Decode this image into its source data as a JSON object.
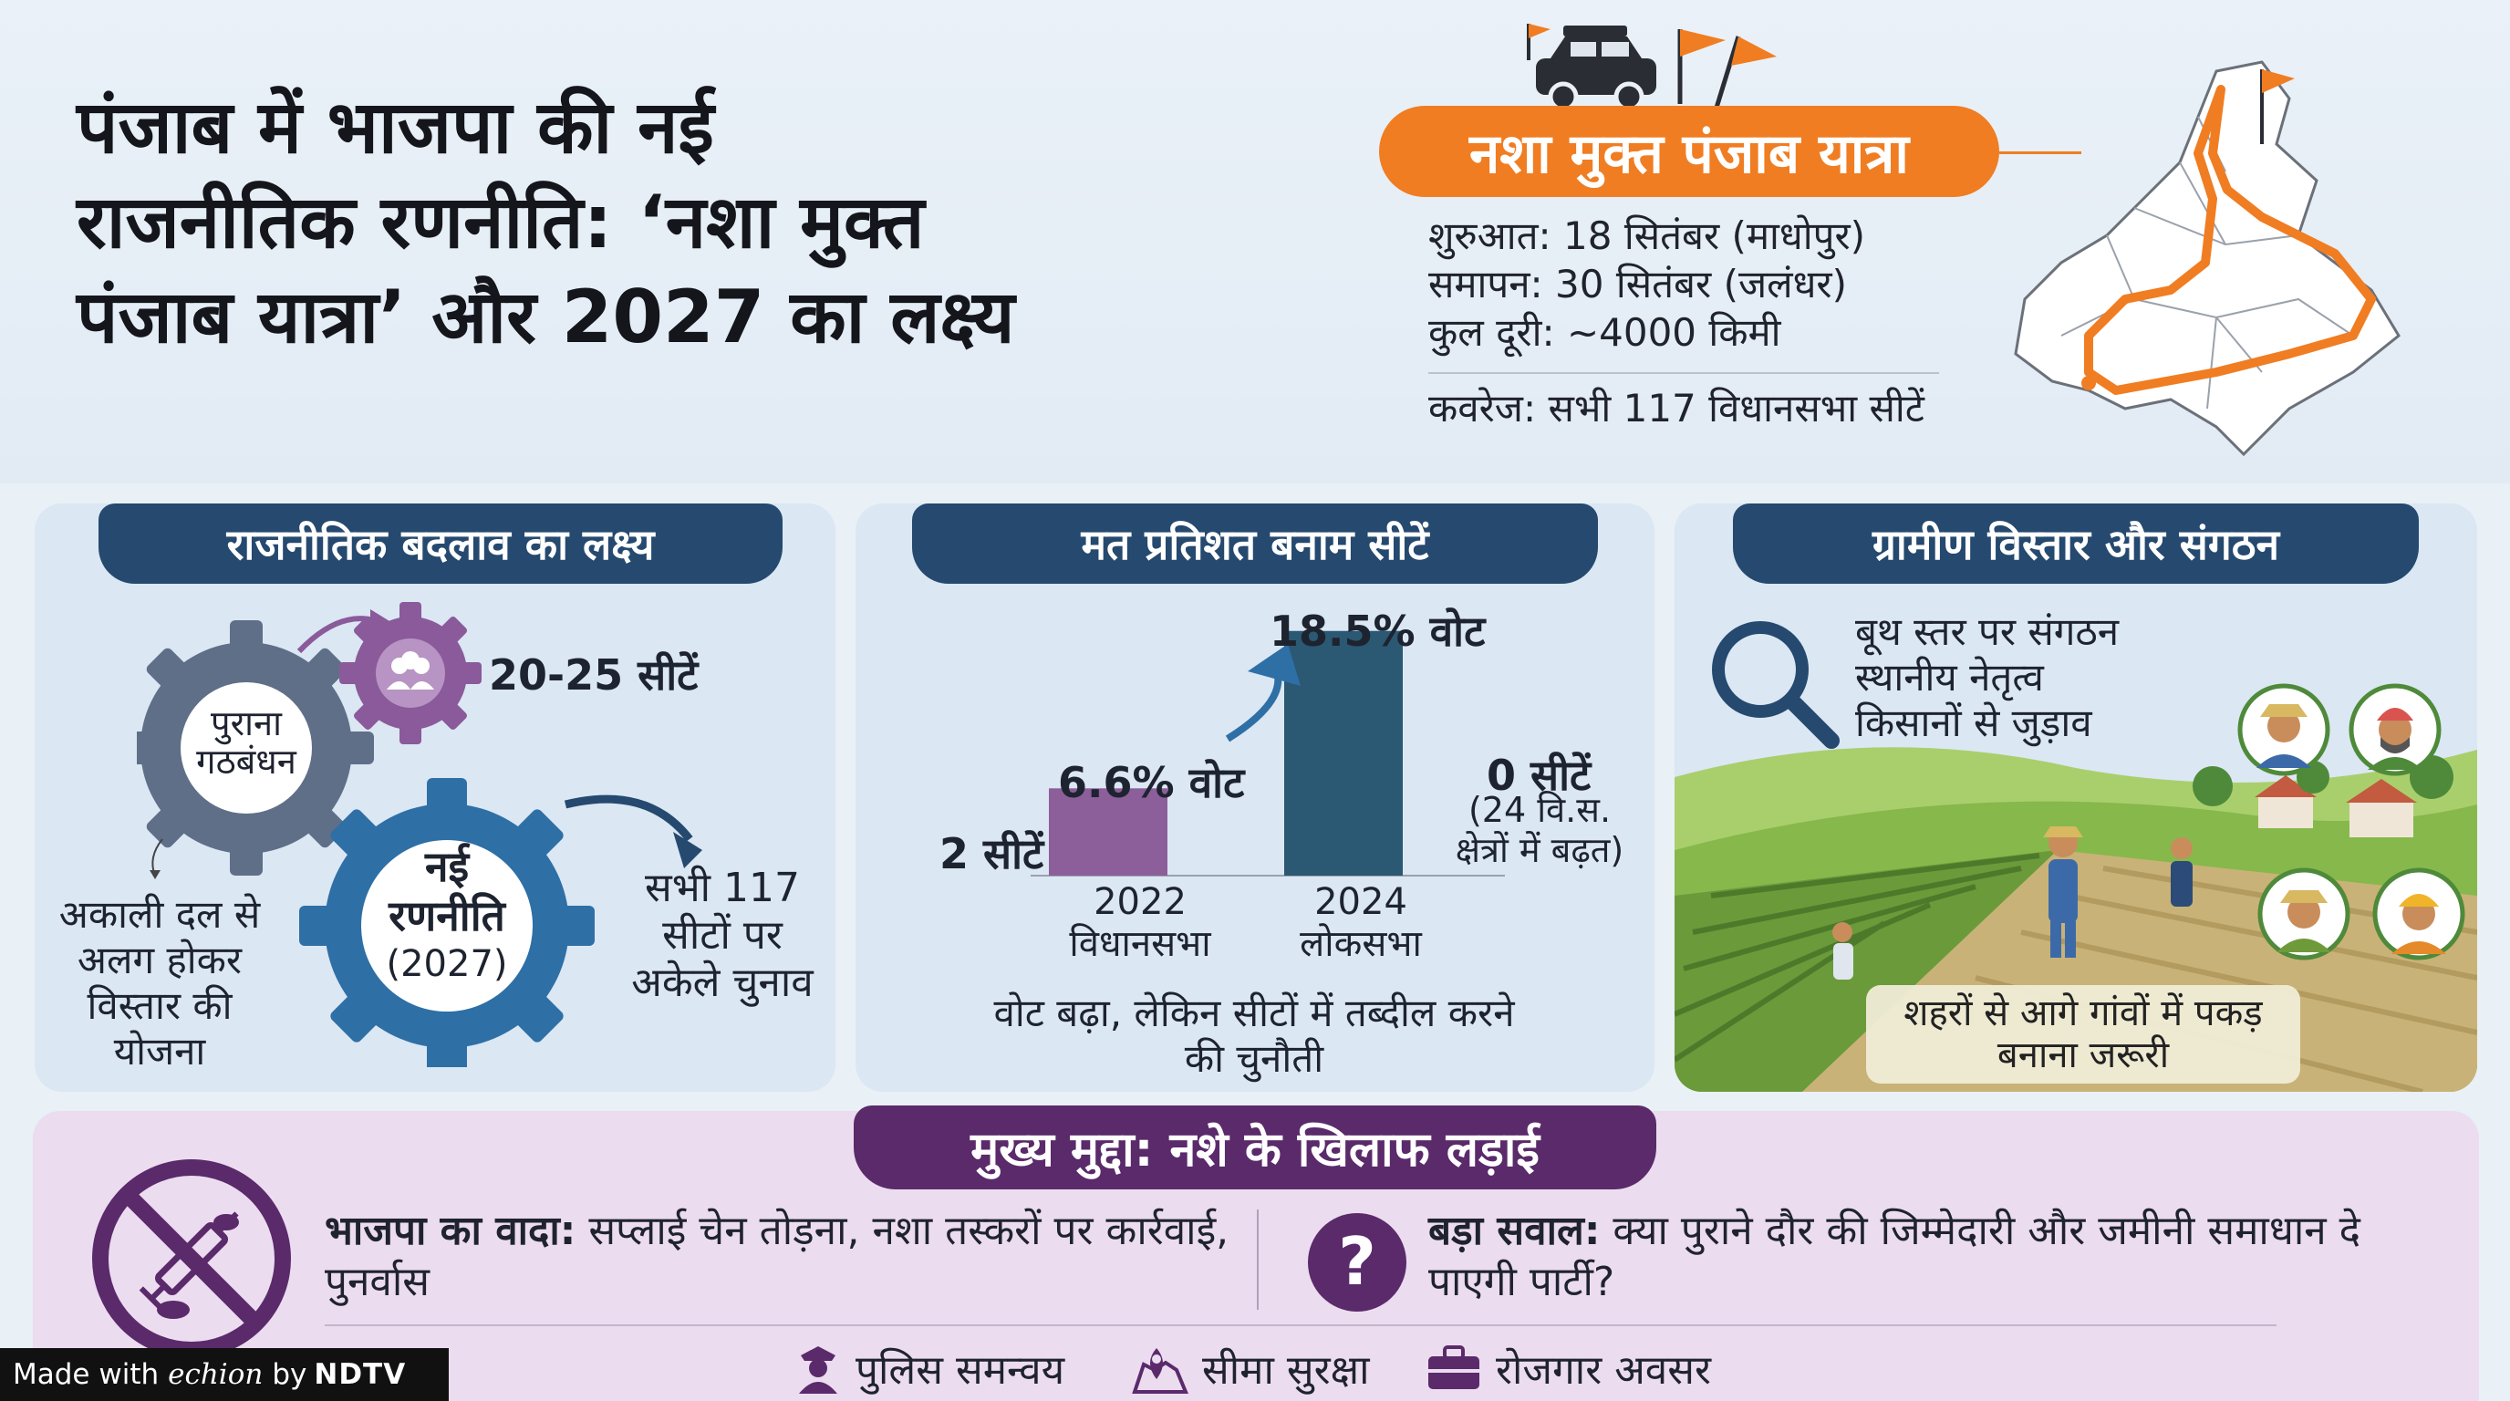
{
  "header": {
    "title_lines": [
      "पंजाब में भाजपा की नई",
      "राजनीतिक रणनीति: ‘नशा मुक्त",
      "पंजाब यात्रा’ और 2027 का लक्ष्य"
    ],
    "yatra": {
      "name": "नशा मुक्त पंजाब यात्रा",
      "start": "शुरुआत: 18 सितंबर (माधोपुर)",
      "end": "समापन: 30 सितंबर (जलंधर)",
      "distance": "कुल दूरी: ~4000 किमी",
      "coverage": "कवरेज: सभी 117 विधानसभा सीटें"
    }
  },
  "panel1": {
    "title": "राजनीतिक बदलाव का लक्ष्य",
    "old_gear": "पुराना गठबंधन",
    "small_gear_label": "20-25 सीटें",
    "new_gear_line1": "नई",
    "new_gear_line2": "रणनीति",
    "new_gear_line3": "(2027)",
    "left_note": "अकाली दल से अलग होकर विस्तार की योजना",
    "right_note": "सभी 117 सीटों पर अकेले चुनाव"
  },
  "panel2": {
    "title": "मत प्रतिशत बनाम सीटें",
    "bar_2022_vote": "6.6% वोट",
    "bar_2022_seats": "2 सीटें",
    "bar_2024_vote": "18.5% वोट",
    "bar_2024_seats": "0 सीटें",
    "bar_2024_seats_note": "(24 वि.स. क्षेत्रों में बढ़त)",
    "cat_2022_year": "2022",
    "cat_2022_label": "विधानसभा",
    "cat_2024_year": "2024",
    "cat_2024_label": "लोकसभा",
    "caption": "वोट बढ़ा, लेकिन सीटों में तब्दील करने की चुनौती"
  },
  "chart_data": {
    "type": "bar",
    "categories": [
      "2022 विधानसभा",
      "2024 लोकसभा"
    ],
    "values": [
      6.6,
      18.5
    ],
    "title": "मत प्रतिशत बनाम सीटें",
    "seats": [
      2,
      0
    ]
  },
  "panel3": {
    "title": "ग्रामीण विस्तार और संगठन",
    "points": [
      "बूथ स्तर पर संगठन",
      "स्थानीय नेतृत्व",
      "किसानों से जुड़ाव"
    ],
    "note": "शहरों से आगे गांवों में पकड़ बनाना जरूरी"
  },
  "bottom": {
    "title": "मुख्य मुद्दा: नशे के खिलाफ लड़ाई",
    "promise_label": "भाजपा का वादा:",
    "promise_text": "सप्लाई चेन तोड़ना, नशा तस्करों पर कार्रवाई, पुनर्वास",
    "question_label": "बड़ा सवाल:",
    "question_text": "क्या पुराने दौर की जिम्मेदारी और जमीनी समाधान दे पाएगी पार्टी?",
    "features": [
      "पुलिस समन्वय",
      "सीमा सुरक्षा",
      "रोजगार अवसर"
    ]
  },
  "badge": {
    "prefix": "Made with",
    "brand": "echion",
    "by": "by",
    "ndtv": "NDTV"
  },
  "colors": {
    "orange": "#f07d22",
    "navy": "#25496f",
    "purple": "#5a2a6b",
    "bar_2022": "#8c5f9a",
    "bar_2024": "#2b5873"
  }
}
